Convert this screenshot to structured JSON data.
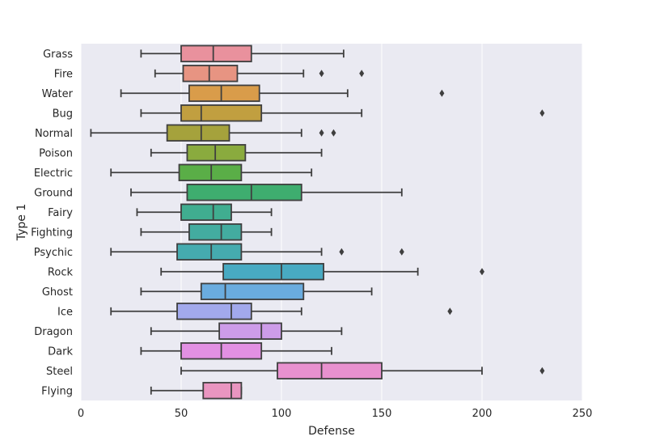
{
  "chart_data": {
    "type": "box",
    "orientation": "horizontal",
    "xlabel": "Defense",
    "ylabel": "Type 1",
    "xlim": [
      0,
      250
    ],
    "xticks": [
      "0",
      "50",
      "100",
      "150",
      "200",
      "250"
    ],
    "xtick_values": [
      0,
      50,
      100,
      150,
      200,
      250
    ],
    "grid": true,
    "categories": [
      "Grass",
      "Fire",
      "Water",
      "Bug",
      "Normal",
      "Poison",
      "Electric",
      "Ground",
      "Fairy",
      "Fighting",
      "Psychic",
      "Rock",
      "Ghost",
      "Ice",
      "Dragon",
      "Dark",
      "Steel",
      "Flying"
    ],
    "boxes": [
      {
        "category": "Grass",
        "whisker_low": 30,
        "q1": 50,
        "median": 66,
        "q3": 85,
        "whisker_high": 131,
        "outliers": [],
        "color": "#e9919d"
      },
      {
        "category": "Fire",
        "whisker_low": 37,
        "q1": 51,
        "median": 64,
        "q3": 78,
        "whisker_high": 111,
        "outliers": [
          120,
          140
        ],
        "color": "#e79482"
      },
      {
        "category": "Water",
        "whisker_low": 20,
        "q1": 54,
        "median": 70,
        "q3": 89,
        "whisker_high": 133,
        "outliers": [
          180
        ],
        "color": "#d99c4a"
      },
      {
        "category": "Bug",
        "whisker_low": 30,
        "q1": 50,
        "median": 60,
        "q3": 90,
        "whisker_high": 140,
        "outliers": [
          230
        ],
        "color": "#c19f40"
      },
      {
        "category": "Normal",
        "whisker_low": 5,
        "q1": 43,
        "median": 60,
        "q3": 74,
        "whisker_high": 110,
        "outliers": [
          120,
          126
        ],
        "color": "#a5a23c"
      },
      {
        "category": "Poison",
        "whisker_low": 35,
        "q1": 53,
        "median": 67,
        "q3": 82,
        "whisker_high": 120,
        "outliers": [],
        "color": "#8aab3e"
      },
      {
        "category": "Electric",
        "whisker_low": 15,
        "q1": 49,
        "median": 65,
        "q3": 80,
        "whisker_high": 115,
        "outliers": [],
        "color": "#5aae47"
      },
      {
        "category": "Ground",
        "whisker_low": 25,
        "q1": 53,
        "median": 85,
        "q3": 110,
        "whisker_high": 160,
        "outliers": [],
        "color": "#3ead6f"
      },
      {
        "category": "Fairy",
        "whisker_low": 28,
        "q1": 50,
        "median": 66,
        "q3": 75,
        "whisker_high": 95,
        "outliers": [],
        "color": "#40ad90"
      },
      {
        "category": "Fighting",
        "whisker_low": 30,
        "q1": 54,
        "median": 70,
        "q3": 80,
        "whisker_high": 95,
        "outliers": [],
        "color": "#43aca0"
      },
      {
        "category": "Psychic",
        "whisker_low": 15,
        "q1": 48,
        "median": 65,
        "q3": 80,
        "whisker_high": 120,
        "outliers": [
          130,
          160
        ],
        "color": "#45abaf"
      },
      {
        "category": "Rock",
        "whisker_low": 40,
        "q1": 71,
        "median": 100,
        "q3": 121,
        "whisker_high": 168,
        "outliers": [
          200
        ],
        "color": "#48aac2"
      },
      {
        "category": "Ghost",
        "whisker_low": 30,
        "q1": 60,
        "median": 72,
        "q3": 111,
        "whisker_high": 145,
        "outliers": [],
        "color": "#6aacdf"
      },
      {
        "category": "Ice",
        "whisker_low": 15,
        "q1": 48,
        "median": 75,
        "q3": 85,
        "whisker_high": 110,
        "outliers": [
          184
        ],
        "color": "#a2a9ec"
      },
      {
        "category": "Dragon",
        "whisker_low": 35,
        "q1": 69,
        "median": 90,
        "q3": 100,
        "whisker_high": 130,
        "outliers": [],
        "color": "#cd9ce9"
      },
      {
        "category": "Dark",
        "whisker_low": 30,
        "q1": 50,
        "median": 70,
        "q3": 90,
        "whisker_high": 125,
        "outliers": [],
        "color": "#e290e3"
      },
      {
        "category": "Steel",
        "whisker_low": 50,
        "q1": 98,
        "median": 120,
        "q3": 150,
        "whisker_high": 200,
        "outliers": [
          230
        ],
        "color": "#e891cf"
      },
      {
        "category": "Flying",
        "whisker_low": 35,
        "q1": 61,
        "median": 75,
        "q3": 80,
        "whisker_high": 80,
        "outliers": [],
        "color": "#e995c0"
      }
    ],
    "colors": {
      "plot_background": "#eaeaf2",
      "grid": "#ffffff",
      "line": "#3f3f3f"
    }
  }
}
